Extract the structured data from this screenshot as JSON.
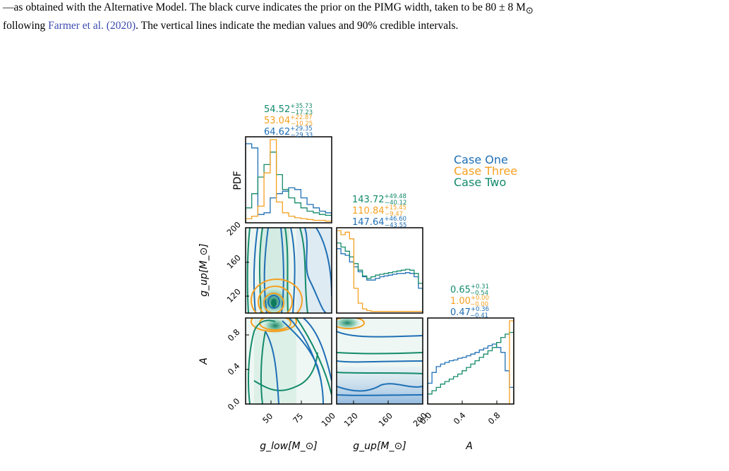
{
  "caption": {
    "line1": "—as obtained with the Alternative Model. The black curve indicates the prior on the PIMG width, taken to be 80 ± 8 M",
    "line1_sub": "⊙",
    "line2_pre": "following ",
    "line2_cite": "Farmer et al. (2020)",
    "line2_post": ". The vertical lines indicate the median values and 90% credible intervals."
  },
  "chart_data": {
    "type": "corner",
    "parameters": [
      "g_low",
      "g_up",
      "A"
    ],
    "axis_labels": {
      "g_low": "g_low[M_⊙]",
      "g_up": "g_up[M_⊙]",
      "A": "A",
      "pdf": "PDF"
    },
    "ranges": {
      "g_low": [
        30,
        100
      ],
      "g_up": [
        100,
        200
      ],
      "A": [
        0.0,
        1.0
      ]
    },
    "ticks": {
      "g_low": [
        "50",
        "75",
        "100"
      ],
      "g_up": [
        "120",
        "160",
        "200"
      ],
      "A": [
        "0.0",
        "0.4",
        "0.8"
      ]
    },
    "legend": {
      "placement": "top-right",
      "entries": [
        {
          "name": "Case One",
          "color": "#1f6fb5"
        },
        {
          "name": "Case Three",
          "color": "#f5a020"
        },
        {
          "name": "Case Two",
          "color": "#138a6a"
        }
      ]
    },
    "summaries": {
      "g_low": [
        {
          "series": "Case Two",
          "median": "54.52",
          "plus": "+35.73",
          "minus": "−17.23"
        },
        {
          "series": "Case Three",
          "median": "53.04",
          "plus": "+22.87",
          "minus": "−10.25"
        },
        {
          "series": "Case One",
          "median": "64.62",
          "plus": "+29.35",
          "minus": "−29.33"
        }
      ],
      "g_up": [
        {
          "series": "Case Two",
          "median": "143.72",
          "plus": "+49.48",
          "minus": "−40.12"
        },
        {
          "series": "Case Three",
          "median": "110.84",
          "plus": "+15.45",
          "minus": "−9.47"
        },
        {
          "series": "Case One",
          "median": "147.64",
          "plus": "+46.60",
          "minus": "−43.55"
        }
      ],
      "A": [
        {
          "series": "Case Two",
          "median": "0.65",
          "plus": "+0.31",
          "minus": "−0.54"
        },
        {
          "series": "Case Three",
          "median": "1.00",
          "plus": "+0.00",
          "minus": "−0.00"
        },
        {
          "series": "Case One",
          "median": "0.47",
          "plus": "+0.36",
          "minus": "−0.41"
        }
      ]
    },
    "histograms": {
      "g_low": {
        "bins": [
          30,
          35,
          40,
          45,
          50,
          55,
          60,
          65,
          70,
          75,
          80,
          85,
          90,
          95,
          100
        ],
        "Case One": [
          0.95,
          0.9,
          0.1,
          0.12,
          0.3,
          0.35,
          0.38,
          0.42,
          0.4,
          0.3,
          0.22,
          0.18,
          0.14,
          0.12
        ],
        "Case Two": [
          0.18,
          0.35,
          0.55,
          0.7,
          0.85,
          0.58,
          0.4,
          0.3,
          0.24,
          0.18,
          0.14,
          0.12,
          0.1,
          0.09
        ],
        "Case Three": [
          0.05,
          0.08,
          0.2,
          0.6,
          1.0,
          0.25,
          0.12,
          0.08,
          0.06,
          0.05,
          0.04,
          0.03,
          0.03,
          0.02
        ]
      },
      "g_up": {
        "bins": [
          100,
          105,
          110,
          115,
          120,
          125,
          130,
          135,
          140,
          145,
          150,
          155,
          160,
          165,
          170,
          175,
          180,
          185,
          190,
          195,
          200
        ],
        "Case One": [
          0.78,
          0.72,
          0.7,
          0.62,
          0.56,
          0.5,
          0.44,
          0.4,
          0.4,
          0.42,
          0.44,
          0.45,
          0.46,
          0.47,
          0.48,
          0.48,
          0.49,
          0.48,
          0.44,
          0.3
        ],
        "Case Two": [
          0.85,
          0.8,
          0.75,
          0.68,
          0.6,
          0.52,
          0.45,
          0.42,
          0.44,
          0.46,
          0.47,
          0.48,
          0.49,
          0.5,
          0.51,
          0.52,
          0.53,
          0.52,
          0.48,
          0.36
        ],
        "Case Three": [
          1.0,
          0.95,
          0.98,
          0.9,
          0.3,
          0.12,
          0.05,
          0.03,
          0.02,
          0.02,
          0.02,
          0.02,
          0.02,
          0.02,
          0.02,
          0.02,
          0.02,
          0.02,
          0.02,
          0.02
        ]
      },
      "A": {
        "bins": [
          0.0,
          0.05,
          0.1,
          0.15,
          0.2,
          0.25,
          0.3,
          0.35,
          0.4,
          0.45,
          0.5,
          0.55,
          0.6,
          0.65,
          0.7,
          0.75,
          0.8,
          0.85,
          0.9,
          0.95,
          1.0
        ],
        "Case One": [
          0.25,
          0.38,
          0.45,
          0.48,
          0.5,
          0.52,
          0.53,
          0.55,
          0.56,
          0.58,
          0.6,
          0.62,
          0.65,
          0.67,
          0.7,
          0.72,
          0.68,
          0.62,
          0.4,
          0.2
        ],
        "Case Two": [
          0.12,
          0.16,
          0.2,
          0.24,
          0.27,
          0.3,
          0.33,
          0.36,
          0.4,
          0.44,
          0.48,
          0.52,
          0.56,
          0.6,
          0.64,
          0.68,
          0.74,
          0.8,
          0.84,
          0.86
        ],
        "Case Three": [
          0.0,
          0.0,
          0.0,
          0.0,
          0.0,
          0.0,
          0.0,
          0.0,
          0.0,
          0.0,
          0.0,
          0.0,
          0.0,
          0.0,
          0.0,
          0.0,
          0.0,
          0.0,
          0.0,
          1.0
        ]
      }
    },
    "joint_peaks": {
      "g_low_vs_g_up": {
        "Case One": [
          50,
          115
        ],
        "Case Two": [
          50,
          115
        ],
        "Case Three": [
          50,
          118
        ]
      },
      "g_low_vs_A": {
        "Case One": [
          50,
          0.88
        ],
        "Case Two": [
          50,
          0.92
        ],
        "Case Three": [
          50,
          0.97
        ]
      },
      "g_up_vs_A": {
        "Case One": [
          110,
          0.1
        ],
        "Case Two": [
          105,
          0.95
        ],
        "Case Three": [
          105,
          0.98
        ]
      }
    },
    "grid": false
  }
}
